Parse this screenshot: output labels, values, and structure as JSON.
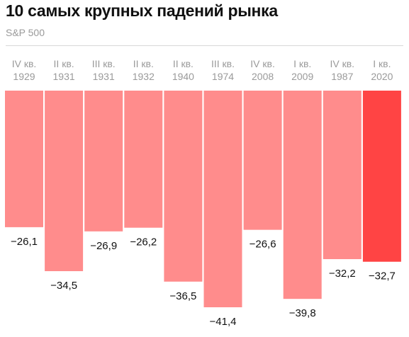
{
  "header": {
    "title": "10 самых крупных падений рынка",
    "subtitle": "S&P 500"
  },
  "chart_data": {
    "type": "bar",
    "title": "10 самых крупных падений рынка",
    "subtitle": "S&P 500",
    "categories": [
      {
        "quarter": "IV кв.",
        "year": "1929"
      },
      {
        "quarter": "II кв.",
        "year": "1931"
      },
      {
        "quarter": "III кв.",
        "year": "1931"
      },
      {
        "quarter": "II кв.",
        "year": "1932"
      },
      {
        "quarter": "II кв.",
        "year": "1940"
      },
      {
        "quarter": "III кв.",
        "year": "1974"
      },
      {
        "quarter": "IV кв.",
        "year": "2008"
      },
      {
        "quarter": "I кв.",
        "year": "2009"
      },
      {
        "quarter": "IV кв.",
        "year": "1987"
      },
      {
        "quarter": "I кв.",
        "year": "2020"
      }
    ],
    "values": [
      -26.1,
      -34.5,
      -26.9,
      -26.2,
      -36.5,
      -41.4,
      -26.6,
      -39.8,
      -32.2,
      -32.7
    ],
    "value_labels": [
      "−26,1",
      "−34,5",
      "−26,9",
      "−26,2",
      "−36,5",
      "−41,4",
      "−26,6",
      "−39,8",
      "−32,2",
      "−32,7"
    ],
    "ylim": [
      -41.4,
      0
    ],
    "highlight_index": 9,
    "colors": {
      "bar": "#ff8c8c",
      "highlight": "#ff4444",
      "text": "#111111",
      "muted": "#9a9a9a",
      "rule": "#d8d8d8"
    },
    "grid": false,
    "legend": "none"
  }
}
